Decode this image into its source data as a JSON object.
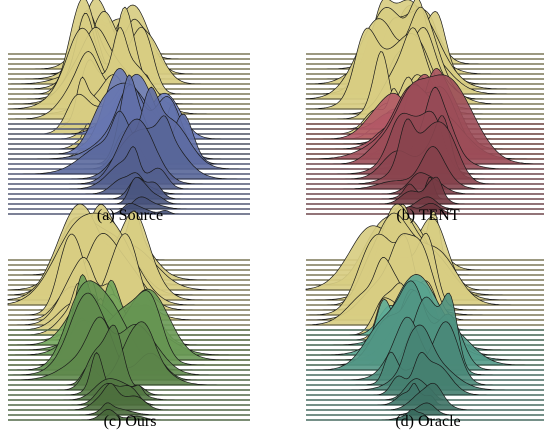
{
  "chart_data": [
    {
      "type": "ridgeline",
      "caption": "(a) Source",
      "series": [
        {
          "name": "",
          "color": "#d8cd82",
          "ridges": 22,
          "peak": 0.4
        },
        {
          "name": "",
          "color": "#7283c4",
          "ridges": 19,
          "peak": 0.55
        }
      ]
    },
    {
      "type": "ridgeline",
      "caption": "(b) TENT",
      "series": [
        {
          "name": "",
          "color": "#d8cd82",
          "ridges": 22,
          "peak": 0.4
        },
        {
          "name": "",
          "color": "#b65a68",
          "ridges": 19,
          "peak": 0.46
        }
      ]
    },
    {
      "type": "ridgeline",
      "caption": "(c) Ours",
      "series": [
        {
          "name": "",
          "color": "#d8cd82",
          "ridges": 22,
          "peak": 0.4
        },
        {
          "name": "",
          "color": "#75aa5e",
          "ridges": 19,
          "peak": 0.45
        }
      ]
    },
    {
      "type": "ridgeline",
      "caption": "(d) Oracle",
      "series": [
        {
          "name": "",
          "color": "#d8cd82",
          "ridges": 22,
          "peak": 0.4
        },
        {
          "name": "",
          "color": "#5fb09b",
          "ridges": 19,
          "peak": 0.46
        }
      ]
    }
  ]
}
